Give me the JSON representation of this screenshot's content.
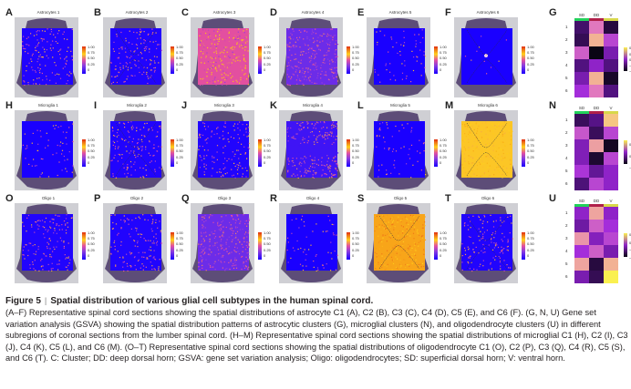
{
  "figure": {
    "panels": [
      {
        "label": "A",
        "title": "Astrocytes 1",
        "pattern": "sparse",
        "ticks": [
          "1.00",
          "0.75",
          "0.50",
          "0.25",
          "0"
        ]
      },
      {
        "label": "B",
        "title": "Astrocytes 2",
        "pattern": "sparse-edge",
        "ticks": [
          "1.00",
          "0.75",
          "0.50",
          "0.25",
          "0"
        ]
      },
      {
        "label": "C",
        "title": "Astrocytes 3",
        "pattern": "high-mixed",
        "ticks": [
          "1.00",
          "0.75",
          "0.50",
          "0.25",
          "0"
        ]
      },
      {
        "label": "D",
        "title": "Astrocytes 4",
        "pattern": "medium",
        "ticks": [
          "1.00",
          "0.75",
          "0.50",
          "0.25",
          "0"
        ]
      },
      {
        "label": "E",
        "title": "Astrocytes 5",
        "pattern": "very-sparse",
        "ticks": [
          "1.00",
          "0.75",
          "0.50",
          "0.25",
          "0"
        ]
      },
      {
        "label": "F",
        "title": "Astrocytes 6",
        "pattern": "center-dot",
        "ticks": [
          "1.00",
          "0.75",
          "0.50",
          "0.25",
          "0"
        ]
      },
      {
        "label": "H",
        "title": "Microglia 1",
        "pattern": "very-sparse",
        "ticks": [
          "1.00",
          "0.75",
          "0.50",
          "0.25",
          "0"
        ]
      },
      {
        "label": "I",
        "title": "Microglia 2",
        "pattern": "sparse-edge",
        "ticks": [
          "1.00",
          "0.75",
          "0.50",
          "0.25",
          "0"
        ]
      },
      {
        "label": "J",
        "title": "Microglia 3",
        "pattern": "sparse",
        "ticks": [
          "1.00",
          "0.75",
          "0.50",
          "0.25",
          "0"
        ]
      },
      {
        "label": "K",
        "title": "Microglia 4",
        "pattern": "dorsal-ventral",
        "ticks": [
          "1.00",
          "0.75",
          "0.50",
          "0.25",
          "0"
        ]
      },
      {
        "label": "L",
        "title": "Microglia 5",
        "pattern": "very-sparse",
        "ticks": [
          "1.00",
          "0.75",
          "0.50",
          "0.25",
          "0"
        ]
      },
      {
        "label": "M",
        "title": "Microglia 6",
        "pattern": "high-yellow",
        "ticks": [
          "1.00",
          "0.75",
          "0.50",
          "0.25",
          "0"
        ]
      },
      {
        "label": "O",
        "title": "Oligo 1",
        "pattern": "sparse",
        "ticks": [
          "1.00",
          "0.75",
          "0.50",
          "0.25",
          "0"
        ]
      },
      {
        "label": "P",
        "title": "Oligo 2",
        "pattern": "sparse",
        "ticks": [
          "1.00",
          "0.75",
          "0.50",
          "0.25",
          "0"
        ]
      },
      {
        "label": "Q",
        "title": "Oligo 3",
        "pattern": "medium",
        "ticks": [
          "1.00",
          "0.75",
          "0.50",
          "0.25",
          "0"
        ]
      },
      {
        "label": "R",
        "title": "Oligo 4",
        "pattern": "very-sparse",
        "ticks": [
          "1.00",
          "0.75",
          "0.50",
          "0.25",
          "0"
        ]
      },
      {
        "label": "S",
        "title": "Oligo 5",
        "pattern": "high-orange",
        "ticks": [
          "1.00",
          "0.75",
          "0.50",
          "0.25",
          "0"
        ]
      },
      {
        "label": "T",
        "title": "Oligo 6",
        "pattern": "sparse-edge",
        "ticks": [
          "1.00",
          "0.75",
          "0.50",
          "0.25",
          "0"
        ]
      }
    ],
    "heatmaps": [
      {
        "label": "G",
        "columns": [
          "SD",
          "DD",
          "V"
        ],
        "rows": [
          "1",
          "2",
          "3",
          "4",
          "5",
          "6"
        ],
        "legend_ticks": [
          "0.4",
          "0.2",
          "0",
          "−0.2",
          "−0.4"
        ],
        "values": [
          [
            -0.2,
            0.2,
            -0.3
          ],
          [
            -0.25,
            0.3,
            0.1
          ],
          [
            0.15,
            -0.4,
            -0.05
          ],
          [
            -0.15,
            0.0,
            -0.15
          ],
          [
            -0.05,
            0.3,
            -0.35
          ],
          [
            0.05,
            0.2,
            -0.15
          ]
        ]
      },
      {
        "label": "N",
        "columns": [
          "SD",
          "DD",
          "V"
        ],
        "rows": [
          "1",
          "2",
          "3",
          "4",
          "5",
          "6"
        ],
        "legend_ticks": [
          "0.5",
          "0",
          "−0.5"
        ],
        "values": [
          [
            -0.35,
            -0.2,
            0.5
          ],
          [
            0.2,
            -0.35,
            0.15
          ],
          [
            -0.05,
            0.4,
            -0.55
          ],
          [
            -0.05,
            -0.5,
            0.15
          ],
          [
            0.1,
            -0.15,
            0.0
          ],
          [
            -0.25,
            0.15,
            0.0
          ]
        ]
      },
      {
        "label": "U",
        "columns": [
          "SD",
          "DD",
          "V"
        ],
        "rows": [
          "1",
          "2",
          "3",
          "4",
          "5",
          "6"
        ],
        "legend_ticks": [
          "0.5",
          "0",
          "−0.5",
          "−1"
        ],
        "values": [
          [
            -0.2,
            0.35,
            -0.2
          ],
          [
            -0.35,
            0.1,
            -0.1
          ],
          [
            0.3,
            -0.25,
            0.0
          ],
          [
            -0.1,
            0.1,
            -0.3
          ],
          [
            0.35,
            -0.8,
            0.4
          ],
          [
            -0.3,
            -0.7,
            0.6
          ]
        ]
      }
    ],
    "column_band_colors": [
      "#22d15a",
      "#b0204a",
      "#d8d84a"
    ]
  },
  "chart_data": [
    {
      "type": "heatmap",
      "title": "G",
      "x": [
        "SD",
        "DD",
        "V"
      ],
      "y": [
        "1",
        "2",
        "3",
        "4",
        "5",
        "6"
      ],
      "zlim": [
        -0.4,
        0.4
      ],
      "values": [
        [
          -0.2,
          0.2,
          -0.3
        ],
        [
          -0.25,
          0.3,
          0.1
        ],
        [
          0.15,
          -0.4,
          -0.05
        ],
        [
          -0.15,
          0.0,
          -0.15
        ],
        [
          -0.05,
          0.3,
          -0.35
        ],
        [
          0.05,
          0.2,
          -0.15
        ]
      ]
    },
    {
      "type": "heatmap",
      "title": "N",
      "x": [
        "SD",
        "DD",
        "V"
      ],
      "y": [
        "1",
        "2",
        "3",
        "4",
        "5",
        "6"
      ],
      "zlim": [
        -0.6,
        0.6
      ],
      "values": [
        [
          -0.35,
          -0.2,
          0.5
        ],
        [
          0.2,
          -0.35,
          0.15
        ],
        [
          -0.05,
          0.4,
          -0.55
        ],
        [
          -0.05,
          -0.5,
          0.15
        ],
        [
          0.1,
          -0.15,
          0.0
        ],
        [
          -0.25,
          0.15,
          0.0
        ]
      ]
    },
    {
      "type": "heatmap",
      "title": "U",
      "x": [
        "SD",
        "DD",
        "V"
      ],
      "y": [
        "1",
        "2",
        "3",
        "4",
        "5",
        "6"
      ],
      "zlim": [
        -1.0,
        0.6
      ],
      "values": [
        [
          -0.2,
          0.35,
          -0.2
        ],
        [
          -0.35,
          0.1,
          -0.1
        ],
        [
          0.3,
          -0.25,
          0.0
        ],
        [
          -0.1,
          0.1,
          -0.3
        ],
        [
          0.35,
          -0.8,
          0.4
        ],
        [
          -0.3,
          -0.7,
          0.6
        ]
      ]
    }
  ],
  "caption": {
    "figure_label": "Figure 5",
    "title": "Spatial distribution of various glial cell subtypes in the human spinal cord.",
    "body": "(A–F) Representative spinal cord sections showing the spatial distributions of astrocyte C1 (A), C2 (B), C3 (C), C4 (D), C5 (E), and C6 (F). (G, N, U) Gene set variation analysis (GSVA) showing the spatial distribution patterns of astrocytic clusters (G), microglial clusters (N), and oligodendrocyte clusters (U) in different subregions of coronal sections from the lumber spinal cord. (H–M) Representative spinal cord sections showing the spatial distributions of microglial C1 (H), C2 (I), C3 (J), C4 (K), C5 (L), and C6 (M). (O–T) Representative spinal cord sections showing the spatial distributions of oligodendrocyte C1 (O), C2 (P), C3 (Q), C4 (R), C5 (S), and C6 (T). C: Cluster; DD: deep dorsal horn; GSVA: gene set variation analysis; Oligo: oligodendrocytes; SD: superficial dorsal horn; V: ventral horn."
  }
}
